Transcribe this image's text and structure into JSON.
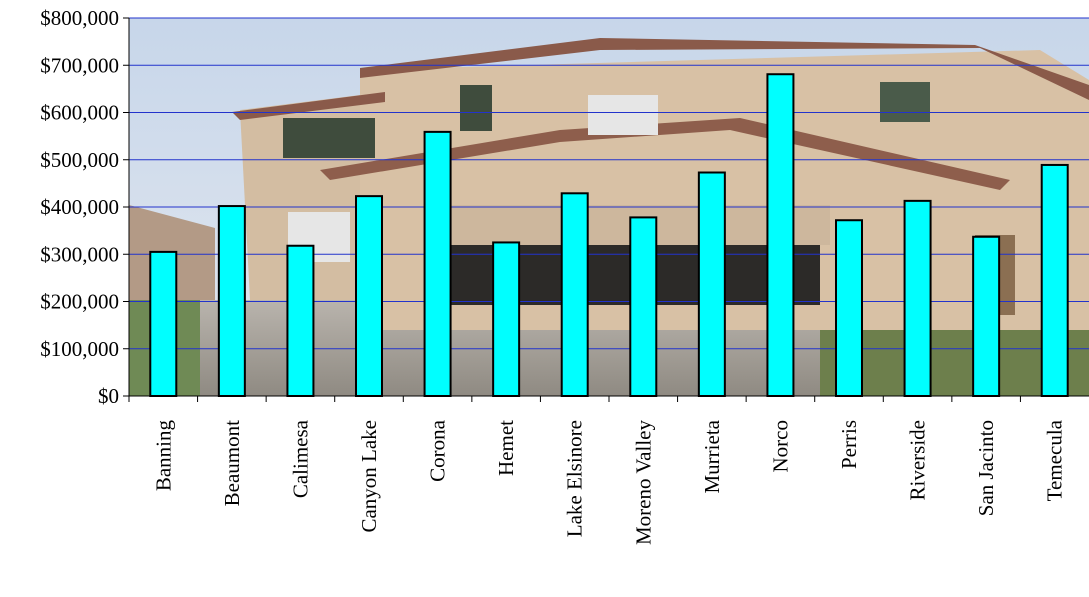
{
  "chart_data": {
    "type": "bar",
    "categories": [
      "Banning",
      "Beaumont",
      "Calimesa",
      "Canyon Lake",
      "Corona",
      "Hemet",
      "Lake Elsinore",
      "Moreno Valley",
      "Murrieta",
      "Norco",
      "Perris",
      "Riverside",
      "San Jacinto",
      "Temecula"
    ],
    "values": [
      305000,
      402000,
      318000,
      423000,
      559000,
      325000,
      429000,
      378000,
      473000,
      681000,
      372000,
      413000,
      337000,
      489000
    ],
    "ylim": [
      0,
      800000
    ],
    "yticks": [
      0,
      100000,
      200000,
      300000,
      400000,
      500000,
      600000,
      700000,
      800000
    ],
    "ytick_labels": [
      "$0",
      "$100,000",
      "$200,000",
      "$300,000",
      "$400,000",
      "$500,000",
      "$600,000",
      "$700,000",
      "$800,000"
    ],
    "grid": true,
    "legend": "none",
    "title": "",
    "xlabel": "",
    "ylabel": "",
    "background": "photo of a two-story stucco house with tile roof and three-car garage",
    "colors": {
      "bar_fill": "#00FFFF",
      "bar_stroke": "#000000",
      "gridline": "#2233cc"
    }
  }
}
